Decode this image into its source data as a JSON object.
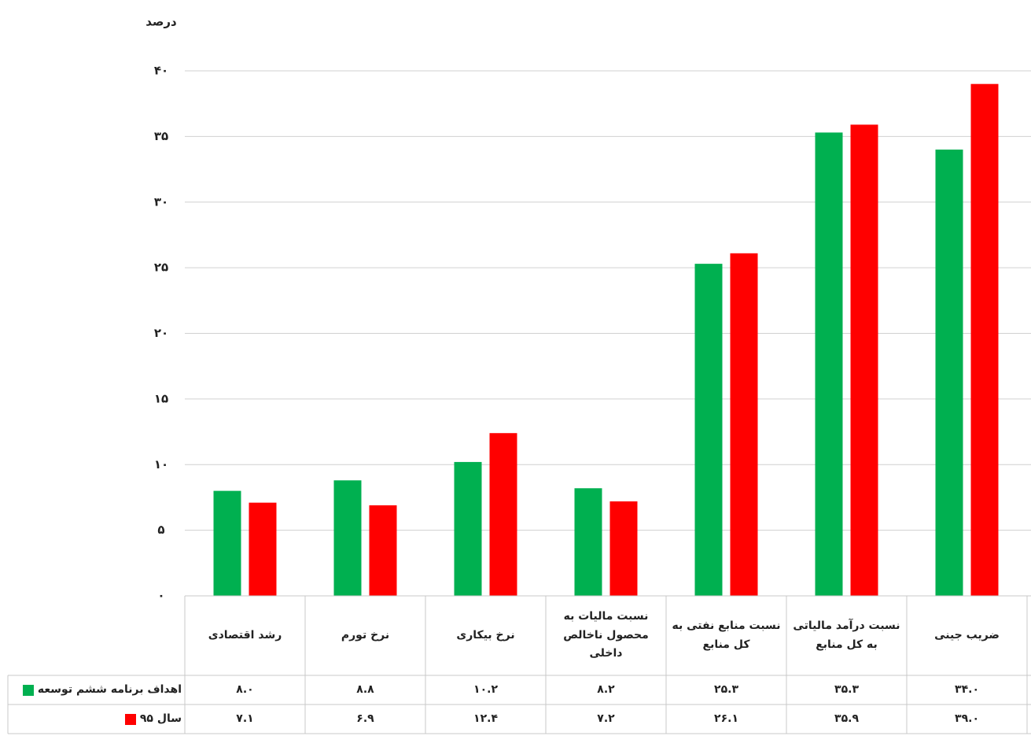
{
  "chart_data": {
    "type": "bar",
    "y_label": "درصد",
    "categories": [
      "رشد اقتصادی",
      "نرخ تورم",
      "نرخ بیکاری",
      "نسبت مالیات به محصول ناخالص داخلی",
      "نسبت منابع نفتی به کل منابع",
      "نسبت درآمد مالیاتی به کل منابع",
      "ضریب جینی"
    ],
    "series": [
      {
        "name": "اهداف برنامه ششم توسعه",
        "color": "#00b050",
        "values": [
          8.0,
          8.8,
          10.2,
          8.2,
          25.3,
          35.3,
          34.0
        ],
        "value_labels": [
          "۸.۰",
          "۸.۸",
          "۱۰.۲",
          "۸.۲",
          "۲۵.۳",
          "۳۵.۳",
          "۳۴.۰"
        ]
      },
      {
        "name": "سال ۹۵",
        "color": "#ff0000",
        "values": [
          7.1,
          6.9,
          12.4,
          7.2,
          26.1,
          35.9,
          39.0
        ],
        "value_labels": [
          "۷.۱",
          "۶.۹",
          "۱۲.۴",
          "۷.۲",
          "۲۶.۱",
          "۳۵.۹",
          "۳۹.۰"
        ]
      }
    ],
    "ylim": [
      0,
      40
    ],
    "yticks": [
      {
        "value": 0,
        "label": "۰"
      },
      {
        "value": 5,
        "label": "۵"
      },
      {
        "value": 10,
        "label": "۱۰"
      },
      {
        "value": 15,
        "label": "۱۵"
      },
      {
        "value": 20,
        "label": "۲۰"
      },
      {
        "value": 25,
        "label": "۲۵"
      },
      {
        "value": 30,
        "label": "۳۰"
      },
      {
        "value": 35,
        "label": "۳۵"
      },
      {
        "value": 40,
        "label": "۴۰"
      }
    ],
    "grid": true
  }
}
